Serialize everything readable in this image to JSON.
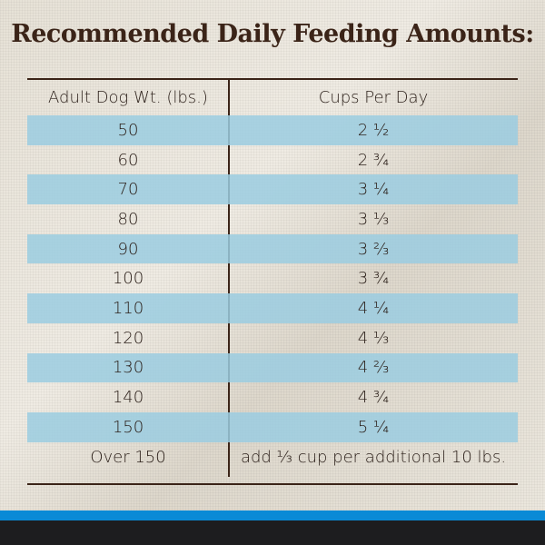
{
  "title": "Recommended Daily Feeding Amounts:",
  "table": {
    "headers": [
      "Adult Dog Wt. (lbs.)",
      "Cups Per Day"
    ],
    "rows": [
      {
        "weight": "50",
        "cups": "2 ½"
      },
      {
        "weight": "60",
        "cups": "2 ¾"
      },
      {
        "weight": "70",
        "cups": "3 ¼"
      },
      {
        "weight": "80",
        "cups": "3 ⅓"
      },
      {
        "weight": "90",
        "cups": "3 ⅔"
      },
      {
        "weight": "100",
        "cups": "3 ¾"
      },
      {
        "weight": "110",
        "cups": "4 ¼"
      },
      {
        "weight": "120",
        "cups": "4 ⅓"
      },
      {
        "weight": "130",
        "cups": "4 ⅔"
      },
      {
        "weight": "140",
        "cups": "4 ¾"
      },
      {
        "weight": "150",
        "cups": "5 ¼"
      },
      {
        "weight": "Over 150",
        "cups": "add ⅓ cup per additional 10 lbs."
      }
    ]
  },
  "colors": {
    "stripe": "#9bcde1",
    "text": "#3b2418",
    "band_blue": "#0a8ad6",
    "band_black": "#1d1d1f"
  }
}
